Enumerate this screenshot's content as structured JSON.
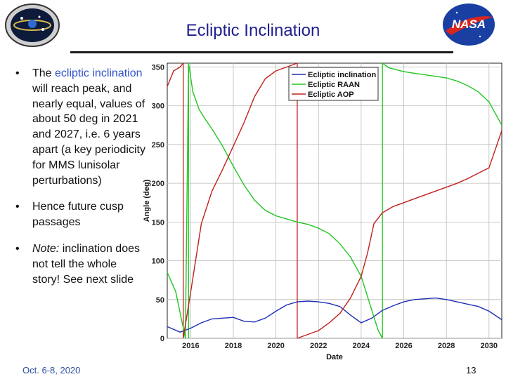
{
  "slide": {
    "title": "Ecliptic Inclination",
    "footer": "Oct. 6-8, 2020",
    "page_number": "13"
  },
  "bullets": [
    {
      "pre": "The ",
      "accent": "ecliptic inclination",
      "post": " will reach peak, and nearly equal, values of about 50 deg in 2021 and 2027, i.e. 6 years apart (a key periodicity for MMS lunisolar perturbations)"
    },
    {
      "pre": "Hence future cusp passages",
      "accent": "",
      "post": ""
    },
    {
      "italic": "Note:",
      "post": " inclination does not tell the whole story!  See next slide"
    }
  ],
  "logos": {
    "left": "mms-mission-logo",
    "right": "nasa-meatball-logo",
    "right_text": "NASA"
  },
  "chart_data": {
    "type": "line",
    "xlabel": "Date",
    "ylabel": "Angle (deg)",
    "xlim": [
      2014.9,
      2030.6
    ],
    "ylim": [
      0,
      355
    ],
    "xticks": [
      2016,
      2018,
      2020,
      2022,
      2024,
      2026,
      2028,
      2030
    ],
    "yticks": [
      0,
      50,
      100,
      150,
      200,
      250,
      300,
      350
    ],
    "grid": true,
    "legend_position": "top-right",
    "series": [
      {
        "name": "Ecliptic inclination",
        "color": "#1f2fb5",
        "x": [
          2014.9,
          2015.5,
          2016.0,
          2016.5,
          2017.0,
          2017.5,
          2018.0,
          2018.5,
          2019.0,
          2019.5,
          2020.0,
          2020.5,
          2021.0,
          2021.5,
          2022.0,
          2022.5,
          2023.0,
          2023.5,
          2024.0,
          2024.5,
          2025.0,
          2025.5,
          2026.0,
          2026.5,
          2027.0,
          2027.5,
          2028.0,
          2028.5,
          2029.0,
          2029.5,
          2030.0,
          2030.6
        ],
        "y": [
          15,
          8,
          13,
          20,
          25,
          26,
          27,
          22,
          21,
          26,
          35,
          43,
          47,
          48,
          47,
          45,
          41,
          30,
          20,
          26,
          36,
          42,
          47,
          50,
          51,
          52,
          50,
          47,
          44,
          41,
          35,
          24
        ]
      },
      {
        "name": "Ecliptic RAAN",
        "color": "#22c622",
        "x": [
          2014.9,
          2015.3,
          2015.6,
          2015.75,
          2015.9,
          2016.1,
          2016.4,
          2016.7,
          2017.0,
          2017.5,
          2018.0,
          2018.5,
          2019.0,
          2019.5,
          2020.0,
          2020.5,
          2021.0,
          2021.5,
          2022.0,
          2022.5,
          2023.0,
          2023.5,
          2024.0,
          2024.4,
          2024.8,
          2025.0
        ],
        "y": [
          85,
          60,
          20,
          0,
          355,
          318,
          295,
          282,
          270,
          248,
          222,
          198,
          178,
          165,
          158,
          154,
          150,
          147,
          142,
          135,
          122,
          105,
          80,
          45,
          10,
          0
        ],
        "wrap_x": [
          2025.0,
          2025.3,
          2026.0,
          2026.5,
          2027.0,
          2027.5,
          2028.0,
          2028.5,
          2029.0,
          2029.5,
          2030.0,
          2030.6
        ],
        "wrap_y": [
          355,
          349,
          344,
          342,
          340,
          338,
          336,
          332,
          326,
          318,
          305,
          275
        ]
      },
      {
        "name": "Ecliptic AOP",
        "color": "#c0201e",
        "x": [
          2014.9,
          2015.2,
          2015.5,
          2015.65
        ],
        "y": [
          325,
          345,
          350,
          355
        ],
        "wrap_x": [
          2015.65,
          2016.0,
          2016.5,
          2017.0,
          2017.5,
          2018.0,
          2018.5,
          2019.0,
          2019.5,
          2020.0,
          2020.5,
          2021.0
        ],
        "wrap_y": [
          0,
          60,
          148,
          190,
          218,
          248,
          278,
          312,
          335,
          345,
          350,
          355
        ],
        "wrap2_x": [
          2021.0,
          2021.5,
          2022.0,
          2022.5,
          2023.0,
          2023.5,
          2024.0,
          2024.3,
          2024.6,
          2025.0,
          2025.5,
          2026.0,
          2026.5,
          2027.0,
          2027.5,
          2028.0,
          2028.5,
          2029.0,
          2029.5,
          2030.0,
          2030.6
        ],
        "wrap2_y": [
          0,
          5,
          10,
          20,
          32,
          52,
          80,
          110,
          148,
          162,
          170,
          175,
          180,
          185,
          190,
          195,
          200,
          206,
          213,
          220,
          268
        ]
      }
    ],
    "vertical_lines": [
      {
        "x": 2015.65,
        "color": "#c0201e"
      },
      {
        "x": 2015.9,
        "color": "#22c622"
      },
      {
        "x": 2021.0,
        "color": "#c0201e"
      },
      {
        "x": 2025.0,
        "color": "#22c622"
      }
    ]
  }
}
